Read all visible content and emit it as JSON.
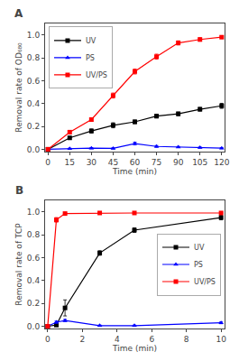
{
  "chart_data": [
    {
      "type": "line",
      "title": "A",
      "x_label": "Time (min)",
      "y_label": "Removal rate of OD₆₈₀",
      "xlim": [
        -2,
        122
      ],
      "ylim": [
        -0.02,
        1.1
      ],
      "xticks": [
        0,
        15,
        30,
        45,
        60,
        75,
        90,
        105,
        120
      ],
      "yticks": [
        {
          "value": 0.0,
          "label": "0.0"
        },
        0.2,
        0.4,
        0.6,
        0.8,
        {
          "value": 1.0,
          "label": "1.0"
        }
      ],
      "legend": "upper left",
      "grid": false,
      "series": [
        {
          "name": "UV",
          "color": "#000000",
          "marker": "square",
          "x": [
            0,
            15,
            30,
            45,
            60,
            75,
            90,
            105,
            120
          ],
          "values": [
            0.0,
            0.1,
            0.16,
            0.21,
            0.24,
            0.29,
            0.31,
            0.35,
            0.38
          ],
          "yerr": [
            0.005,
            0.012,
            0.018,
            0.022,
            0.016,
            0.016,
            0.016,
            0.016,
            0.022
          ]
        },
        {
          "name": "PS",
          "color": "#0000FF",
          "marker": "triangle-up",
          "x": [
            0,
            15,
            30,
            45,
            60,
            75,
            90,
            105,
            120
          ],
          "values": [
            0.0,
            0.005,
            0.01,
            0.008,
            0.05,
            0.025,
            0.02,
            0.015,
            0.01
          ],
          "yerr": [
            0.003,
            0.005,
            0.005,
            0.005,
            0.012,
            0.008,
            0.005,
            0.005,
            0.005
          ]
        },
        {
          "name": "UV/PS",
          "color": "#FF0000",
          "marker": "square",
          "x": [
            0,
            15,
            30,
            45,
            60,
            75,
            90,
            105,
            120
          ],
          "values": [
            0.0,
            0.15,
            0.26,
            0.47,
            0.68,
            0.81,
            0.93,
            0.96,
            0.98
          ],
          "yerr": [
            0.005,
            0.015,
            0.015,
            0.022,
            0.022,
            0.022,
            0.018,
            0.015,
            0.01
          ]
        }
      ]
    },
    {
      "type": "line",
      "title": "B",
      "x_label": "Time (min)",
      "y_label": "Removal rate of TCP",
      "xlim": [
        -0.15,
        10.2
      ],
      "ylim": [
        -0.02,
        1.1
      ],
      "xticks": [
        0,
        2,
        4,
        6,
        8,
        10
      ],
      "yticks": [
        {
          "value": 0.0,
          "label": "0.0"
        },
        0.2,
        0.4,
        0.6,
        0.8,
        {
          "value": 1.0,
          "label": "1.0"
        }
      ],
      "legend": "center right",
      "grid": false,
      "series": [
        {
          "name": "UV",
          "color": "#000000",
          "marker": "square",
          "x": [
            0,
            0.5,
            1,
            3,
            5,
            10
          ],
          "values": [
            0.0,
            0.01,
            0.16,
            0.64,
            0.84,
            0.95
          ],
          "yerr": [
            0.005,
            0.005,
            0.07,
            0.02,
            0.02,
            0.02
          ]
        },
        {
          "name": "PS",
          "color": "#0000FF",
          "marker": "triangle-up",
          "x": [
            0,
            0.5,
            1,
            3,
            5,
            10
          ],
          "values": [
            0.0,
            0.035,
            0.05,
            0.005,
            0.005,
            0.03
          ],
          "yerr": [
            0.012,
            0.01,
            0.01,
            0.005,
            0.005,
            0.008
          ]
        },
        {
          "name": "UV/PS",
          "color": "#FF0000",
          "marker": "square",
          "x": [
            0,
            0.5,
            1,
            3,
            5,
            10
          ],
          "values": [
            0.0,
            0.93,
            0.985,
            0.99,
            0.99,
            0.99
          ],
          "yerr": [
            0.005,
            0.02,
            0.008,
            0.005,
            0.005,
            0.005
          ]
        }
      ]
    }
  ]
}
